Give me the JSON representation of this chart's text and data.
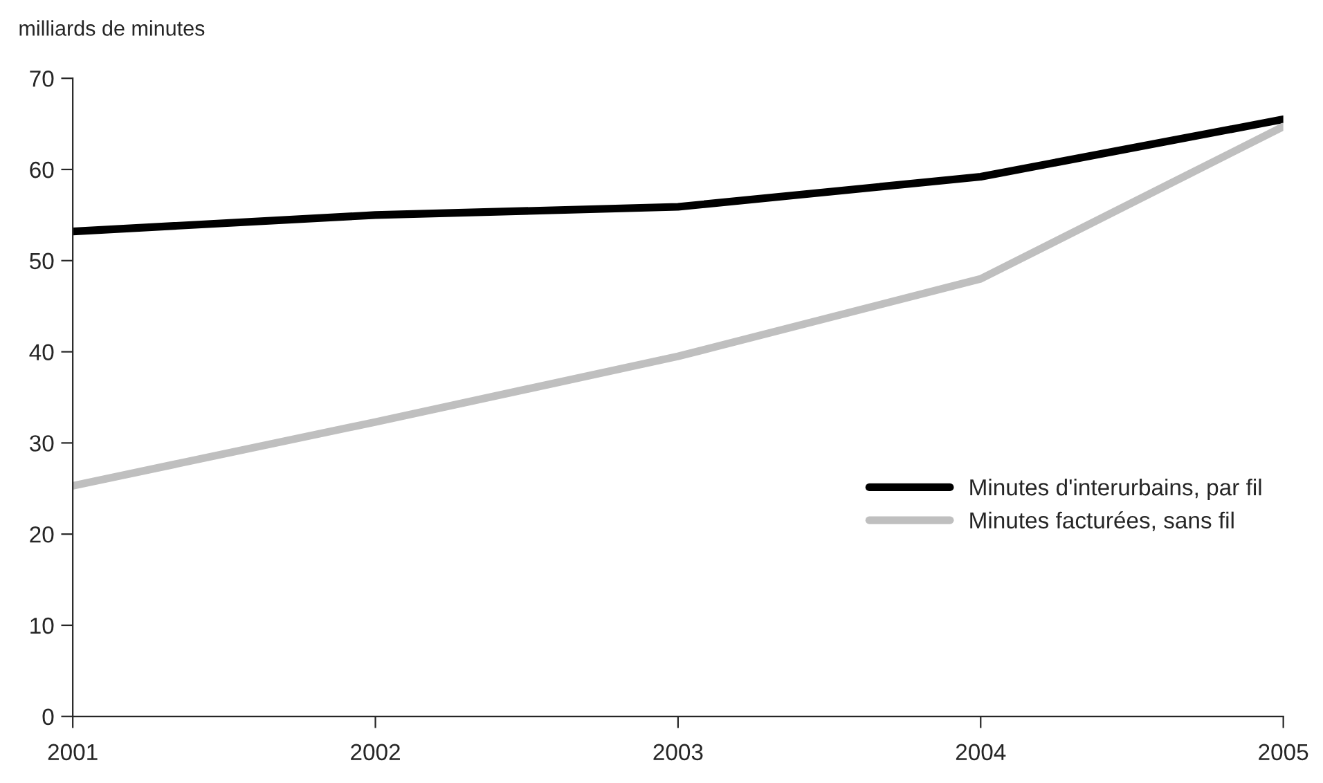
{
  "chart_data": {
    "type": "line",
    "ylabel": "milliards de minutes",
    "x": [
      2001,
      2002,
      2003,
      2004,
      2005
    ],
    "series": [
      {
        "name": "Minutes d'interurbains, par fil",
        "color": "#000000",
        "values": [
          53.2,
          55.0,
          55.9,
          59.2,
          65.5
        ]
      },
      {
        "name": "Minutes facturées, sans fil",
        "color": "#bfbfbf",
        "values": [
          25.3,
          32.3,
          39.5,
          48.0,
          64.7
        ]
      }
    ],
    "xlim": [
      2001,
      2005
    ],
    "xticks": [
      2001,
      2002,
      2003,
      2004,
      2005
    ],
    "ylim": [
      0,
      70
    ],
    "yticks": [
      0,
      10,
      20,
      30,
      40,
      50,
      60,
      70
    ],
    "grid": false,
    "legend": "right",
    "marker": "none",
    "line_style": "solid"
  }
}
